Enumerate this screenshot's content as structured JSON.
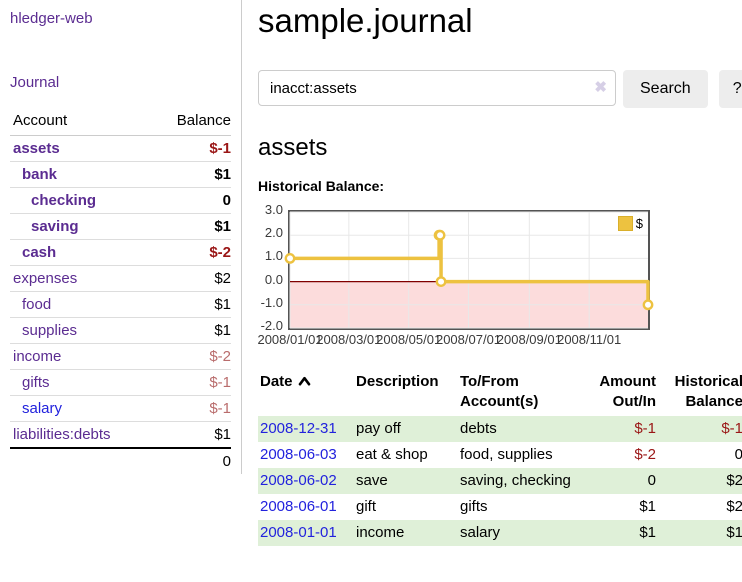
{
  "app": {
    "title": "hledger-web"
  },
  "nav": {
    "journal_label": "Journal"
  },
  "sidebar": {
    "columns": {
      "account": "Account",
      "balance": "Balance"
    },
    "accounts": [
      {
        "name": "assets",
        "balance": "$-1",
        "depth": 1,
        "bold": true,
        "balance_tone": "neg-strong",
        "link_color": "purple"
      },
      {
        "name": "bank",
        "balance": "$1",
        "depth": 2,
        "bold": true,
        "balance_tone": "normal",
        "link_color": "purple"
      },
      {
        "name": "checking",
        "balance": "0",
        "depth": 3,
        "bold": true,
        "balance_tone": "normal",
        "link_color": "purple"
      },
      {
        "name": "saving",
        "balance": "$1",
        "depth": 3,
        "bold": true,
        "balance_tone": "normal",
        "link_color": "purple"
      },
      {
        "name": "cash",
        "balance": "$-2",
        "depth": 2,
        "bold": true,
        "balance_tone": "neg-strong",
        "link_color": "purple"
      },
      {
        "name": "expenses",
        "balance": "$2",
        "depth": 1,
        "bold": false,
        "balance_tone": "normal",
        "link_color": "purple"
      },
      {
        "name": "food",
        "balance": "$1",
        "depth": 2,
        "bold": false,
        "balance_tone": "normal",
        "link_color": "purple"
      },
      {
        "name": "supplies",
        "balance": "$1",
        "depth": 2,
        "bold": false,
        "balance_tone": "normal",
        "link_color": "purple"
      },
      {
        "name": "income",
        "balance": "$-2",
        "depth": 1,
        "bold": false,
        "balance_tone": "neg-soft",
        "link_color": "purple"
      },
      {
        "name": "gifts",
        "balance": "$-1",
        "depth": 2,
        "bold": false,
        "balance_tone": "neg-soft",
        "link_color": "purple"
      },
      {
        "name": "salary",
        "balance": "$-1",
        "depth": 2,
        "bold": false,
        "balance_tone": "neg-soft",
        "link_color": "blue"
      },
      {
        "name": "liabilities:debts",
        "balance": "$1",
        "depth": 1,
        "bold": false,
        "balance_tone": "normal",
        "link_color": "purple"
      }
    ],
    "total": "0"
  },
  "header": {
    "title": "sample.journal"
  },
  "search": {
    "value": "inacct:assets",
    "clear_glyph": "✖",
    "button_label": "Search",
    "help_label": "?"
  },
  "account_page": {
    "title": "assets",
    "chart_label": "Historical Balance:"
  },
  "chart_data": {
    "type": "line",
    "style": "step",
    "title": "Historical Balance",
    "series": [
      {
        "name": "$",
        "color": "#edc240",
        "points": [
          [
            "2008-01-01",
            1
          ],
          [
            "2008-06-01",
            2
          ],
          [
            "2008-06-02",
            2
          ],
          [
            "2008-06-03",
            0
          ],
          [
            "2008-12-31",
            -1
          ]
        ]
      }
    ],
    "x_range": [
      "2008-01-01",
      "2008-12-31"
    ],
    "ylim": [
      -2,
      3
    ],
    "y_ticks": [
      "3.0",
      "2.0",
      "1.0",
      "0.0",
      "-1.0",
      "-2.0"
    ],
    "x_ticks": [
      "2008/01/01",
      "2008/03/01",
      "2008/05/01",
      "2008/07/01",
      "2008/09/01",
      "2008/11/01"
    ],
    "grid": true,
    "gridline_color": "#e8e8e8",
    "border_color": "#545454",
    "zero_line_color": "#800000",
    "negative_region_color": "#fcdcdc",
    "marker_fill": "#ffffff",
    "legend": {
      "label": "$",
      "position": "top-right"
    }
  },
  "transactions": {
    "headers": {
      "date": {
        "line1": "Date",
        "sorted": "ascending"
      },
      "description": {
        "line1": "Description"
      },
      "accounts": {
        "line1": "To/From",
        "line2": "Account(s)"
      },
      "amount": {
        "line1": "Amount",
        "line2": "Out/In"
      },
      "balance": {
        "line1": "Historical",
        "line2": "Balance"
      }
    },
    "rows": [
      {
        "date": "2008-12-31",
        "description": "pay off",
        "accounts": "debts",
        "amount": "$-1",
        "balance": "$-1",
        "amount_tone": "neg-strong",
        "balance_tone": "neg-strong",
        "highlight": true
      },
      {
        "date": "2008-06-03",
        "description": "eat & shop",
        "accounts": "food, supplies",
        "amount": "$-2",
        "balance": "0",
        "amount_tone": "neg-strong",
        "balance_tone": "normal",
        "highlight": false
      },
      {
        "date": "2008-06-02",
        "description": "save",
        "accounts": "saving, checking",
        "amount": "0",
        "balance": "$2",
        "amount_tone": "normal",
        "balance_tone": "normal",
        "highlight": true
      },
      {
        "date": "2008-06-01",
        "description": "gift",
        "accounts": "gifts",
        "amount": "$1",
        "balance": "$2",
        "amount_tone": "normal",
        "balance_tone": "normal",
        "highlight": false
      },
      {
        "date": "2008-01-01",
        "description": "income",
        "accounts": "salary",
        "amount": "$1",
        "balance": "$1",
        "amount_tone": "normal",
        "balance_tone": "normal",
        "highlight": true
      }
    ]
  },
  "colors": {
    "link_purple": "#5b2c91",
    "link_blue": "#2222dd",
    "negative_strong": "#9a1616",
    "negative_soft": "#b96c6c",
    "row_highlight": "#dff0d8",
    "chart_line": "#edc240",
    "chart_negative_fill": "#fcdcdc",
    "zero_line": "#800000"
  }
}
